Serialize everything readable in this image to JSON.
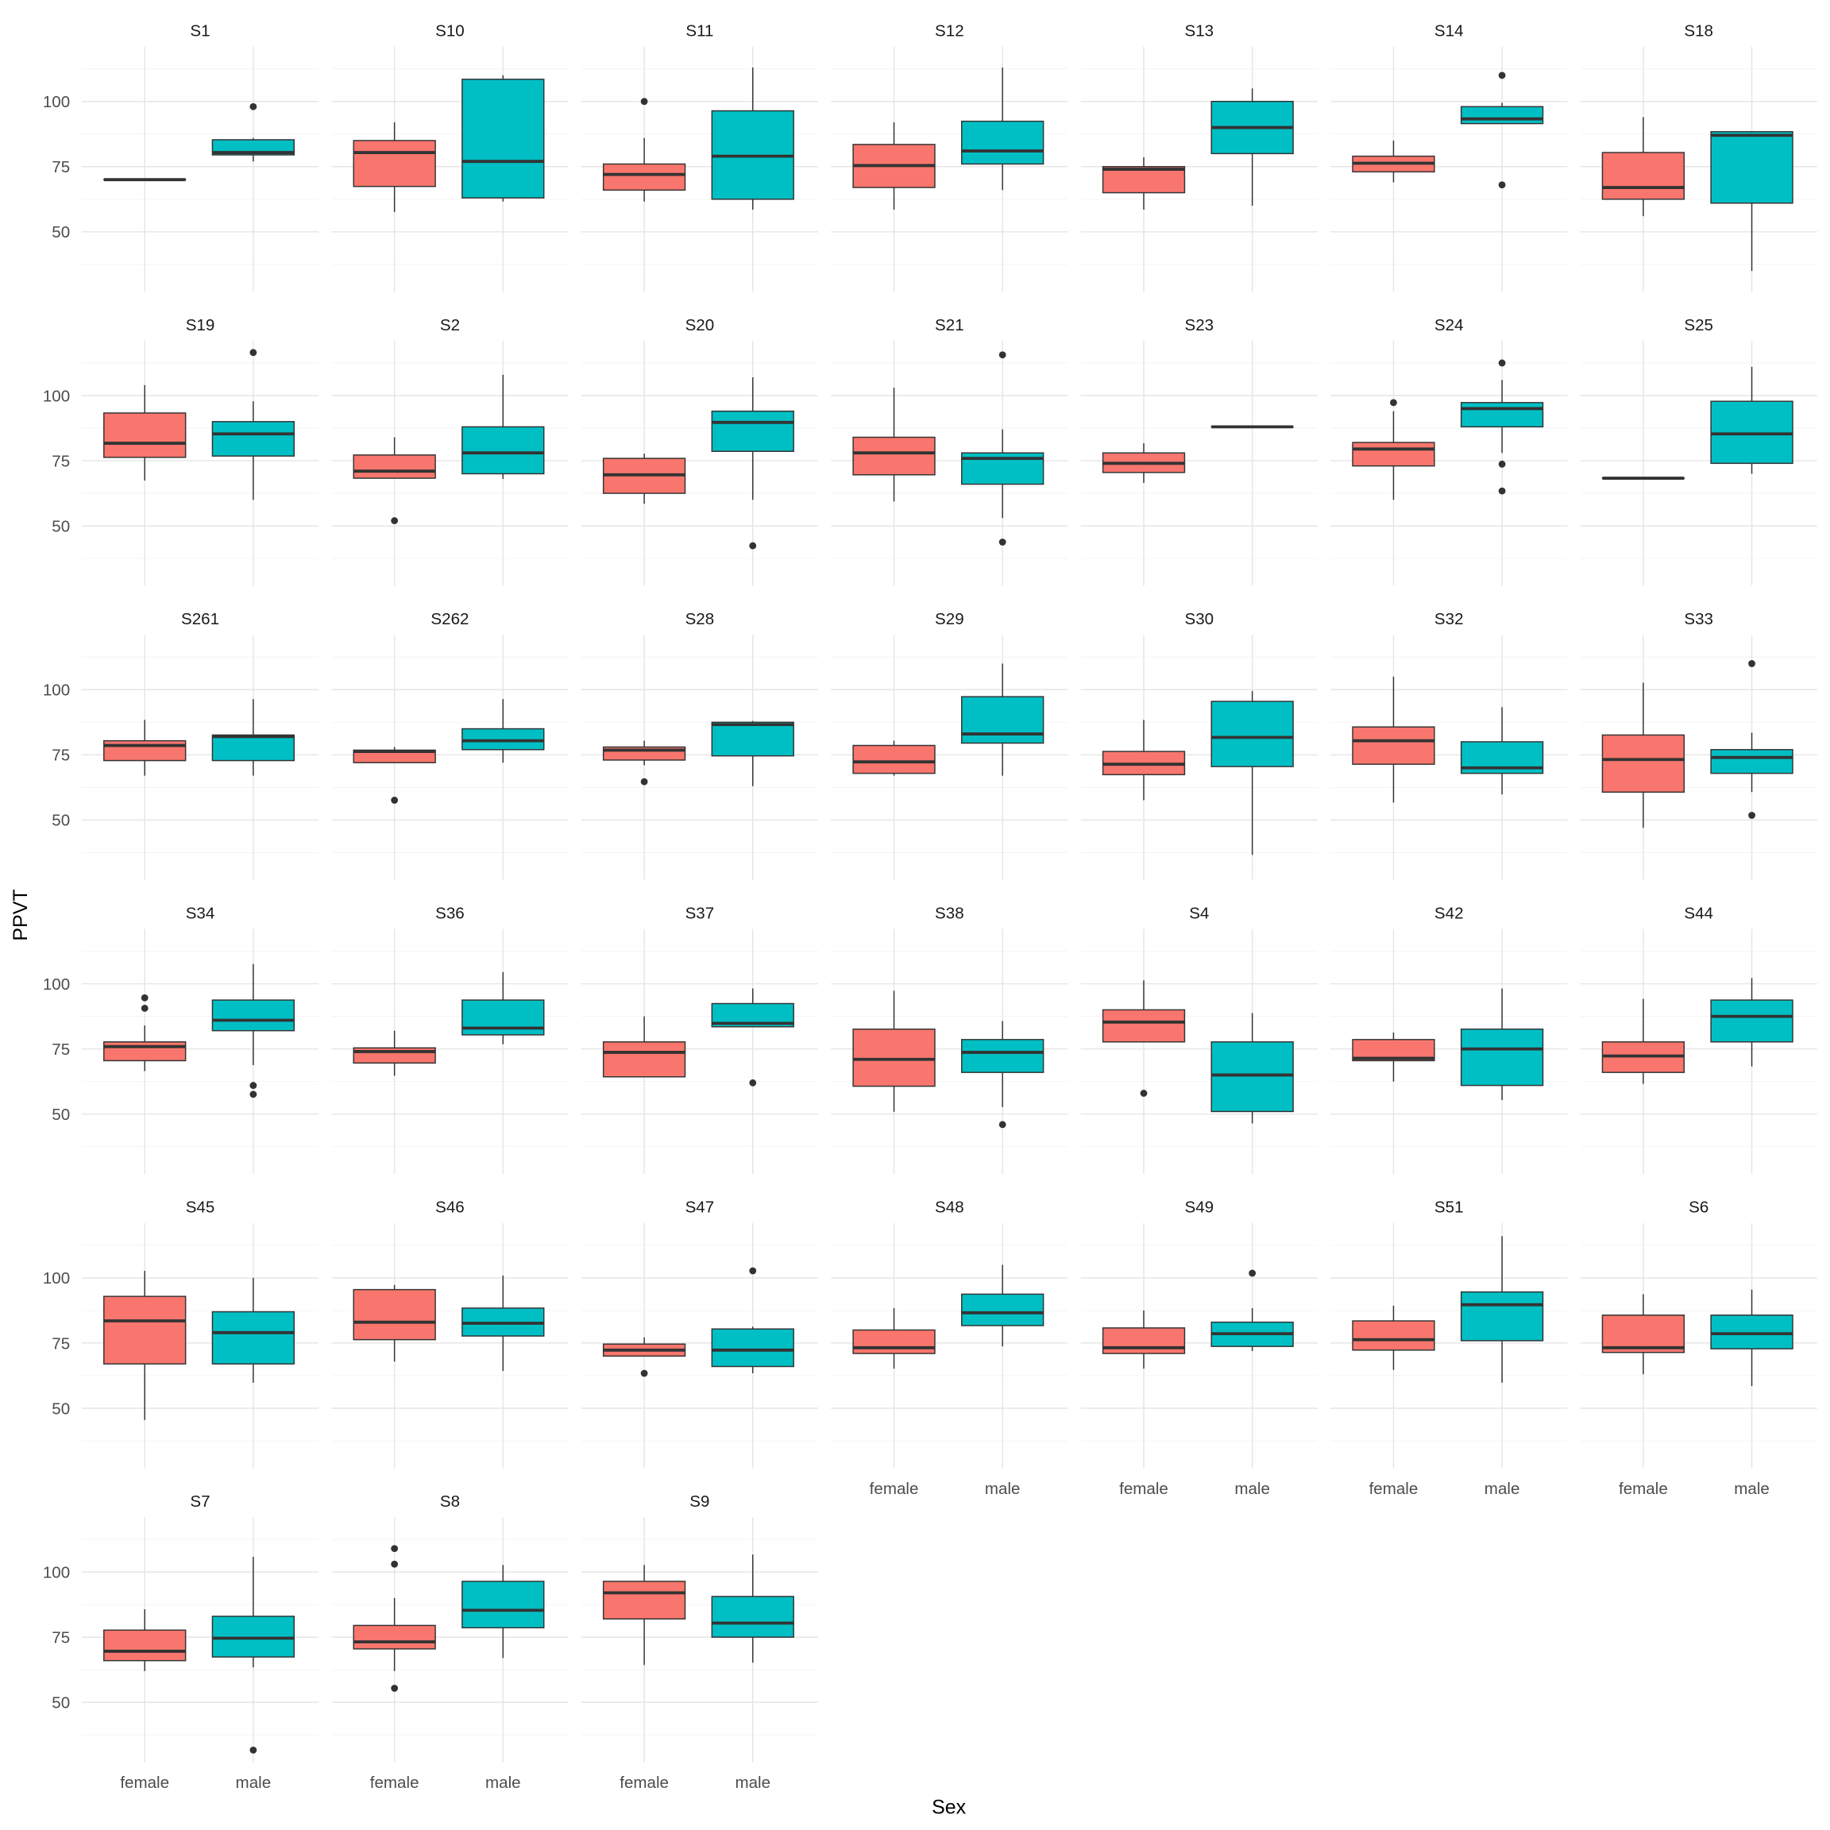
{
  "chart_data": {
    "type": "boxplot",
    "title": "",
    "xlabel": "Sex",
    "ylabel": "PPVT",
    "categories": [
      "female",
      "male"
    ],
    "ylim": [
      27,
      121
    ],
    "yticks": [
      50,
      75,
      100
    ],
    "ytick_labels": [
      "50",
      "75",
      "100"
    ],
    "grid": true,
    "colors": {
      "female": "#F8766D",
      "male": "#00BFC4"
    },
    "stat_order": [
      "lower_whisker",
      "q1",
      "median",
      "q3",
      "upper_whisker"
    ],
    "panels": [
      {
        "name": "S1",
        "female": {
          "stats": [
            70,
            70,
            70,
            70,
            70
          ],
          "outliers": []
        },
        "male": {
          "stats": [
            77,
            79.5,
            80.4,
            85.3,
            86
          ],
          "outliers": [
            98
          ]
        }
      },
      {
        "name": "S10",
        "female": {
          "stats": [
            57.6,
            67.4,
            80.4,
            85,
            92
          ],
          "outliers": []
        },
        "male": {
          "stats": [
            61.6,
            63,
            77,
            108.5,
            110
          ],
          "outliers": []
        }
      },
      {
        "name": "S11",
        "female": {
          "stats": [
            61.6,
            66,
            72,
            76,
            86
          ],
          "outliers": [
            100
          ]
        },
        "male": {
          "stats": [
            58.5,
            62.5,
            79,
            96.4,
            113
          ],
          "outliers": []
        }
      },
      {
        "name": "S12",
        "female": {
          "stats": [
            58.5,
            67,
            75.4,
            83.5,
            92
          ],
          "outliers": []
        },
        "male": {
          "stats": [
            66,
            76,
            81,
            92.4,
            113
          ],
          "outliers": []
        }
      },
      {
        "name": "S13",
        "female": {
          "stats": [
            58.5,
            65,
            74,
            75,
            78.6
          ],
          "outliers": []
        },
        "male": {
          "stats": [
            60,
            80,
            90,
            100,
            105
          ],
          "outliers": []
        }
      },
      {
        "name": "S14",
        "female": {
          "stats": [
            69,
            73,
            76.3,
            79,
            85
          ],
          "outliers": []
        },
        "male": {
          "stats": [
            91.5,
            91.5,
            93.3,
            98,
            99.5
          ],
          "outliers": [
            110,
            68
          ]
        }
      },
      {
        "name": "S18",
        "female": {
          "stats": [
            56,
            62.5,
            67,
            80.4,
            94
          ],
          "outliers": []
        },
        "male": {
          "stats": [
            35,
            61,
            87,
            88.4,
            88.4
          ],
          "outliers": []
        }
      },
      {
        "name": "S19",
        "female": {
          "stats": [
            67.4,
            76.3,
            81.7,
            93.3,
            104
          ],
          "outliers": []
        },
        "male": {
          "stats": [
            60,
            76.8,
            85.3,
            90,
            97.8
          ],
          "outliers": [
            116.5
          ]
        }
      },
      {
        "name": "S2",
        "female": {
          "stats": [
            68.3,
            68.3,
            71,
            77.2,
            84
          ],
          "outliers": [
            52
          ]
        },
        "male": {
          "stats": [
            68,
            70,
            78,
            88,
            108
          ],
          "outliers": []
        }
      },
      {
        "name": "S20",
        "female": {
          "stats": [
            58.5,
            62.5,
            69.6,
            75.9,
            77.7
          ],
          "outliers": []
        },
        "male": {
          "stats": [
            60,
            78.6,
            89.7,
            94,
            107
          ],
          "outliers": [
            42.4
          ]
        }
      },
      {
        "name": "S21",
        "female": {
          "stats": [
            59.4,
            69.6,
            78,
            84,
            103
          ],
          "outliers": []
        },
        "male": {
          "stats": [
            53,
            66,
            75.9,
            78,
            87
          ],
          "outliers": [
            115.6,
            43.8
          ]
        }
      },
      {
        "name": "S23",
        "female": {
          "stats": [
            66.5,
            70.5,
            74,
            78,
            81.7
          ],
          "outliers": []
        },
        "male": {
          "stats": [
            88,
            88,
            88,
            88,
            88
          ],
          "outliers": []
        }
      },
      {
        "name": "S24",
        "female": {
          "stats": [
            60,
            73,
            79.5,
            82,
            94
          ],
          "outliers": [
            97.3
          ]
        },
        "male": {
          "stats": [
            78,
            88,
            95,
            97.3,
            106
          ],
          "outliers": [
            112.5,
            73.7,
            63.4
          ]
        }
      },
      {
        "name": "S25",
        "female": {
          "stats": [
            68.3,
            68.3,
            68.3,
            68.3,
            68.3
          ],
          "outliers": []
        },
        "male": {
          "stats": [
            70,
            74,
            85.3,
            97.8,
            111
          ],
          "outliers": []
        }
      },
      {
        "name": "S261",
        "female": {
          "stats": [
            67,
            72.8,
            78.6,
            80.4,
            88.4
          ],
          "outliers": []
        },
        "male": {
          "stats": [
            67,
            72.8,
            82,
            82.6,
            96.4
          ],
          "outliers": []
        }
      },
      {
        "name": "S262",
        "female": {
          "stats": [
            72,
            72,
            76.3,
            76.8,
            78
          ],
          "outliers": [
            57.6
          ]
        },
        "male": {
          "stats": [
            72,
            77,
            80.4,
            85,
            96.4
          ],
          "outliers": []
        }
      },
      {
        "name": "S28",
        "female": {
          "stats": [
            71,
            73,
            76.8,
            78,
            80.4
          ],
          "outliers": [
            64.7
          ]
        },
        "male": {
          "stats": [
            63,
            74.6,
            86.6,
            87.5,
            88
          ],
          "outliers": []
        }
      },
      {
        "name": "S29",
        "female": {
          "stats": [
            67,
            67.9,
            72.3,
            78.6,
            80.4
          ],
          "outliers": []
        },
        "male": {
          "stats": [
            67,
            79.5,
            83,
            97.3,
            110
          ],
          "outliers": []
        }
      },
      {
        "name": "S30",
        "female": {
          "stats": [
            57.6,
            67.4,
            71.4,
            76.3,
            88.4
          ],
          "outliers": []
        },
        "male": {
          "stats": [
            36.6,
            70.5,
            81.7,
            95.5,
            99.5
          ],
          "outliers": []
        }
      },
      {
        "name": "S32",
        "female": {
          "stats": [
            56.7,
            71.4,
            80.4,
            85.7,
            105
          ],
          "outliers": []
        },
        "male": {
          "stats": [
            59.8,
            67.9,
            70,
            80,
            93.3
          ],
          "outliers": []
        }
      },
      {
        "name": "S33",
        "female": {
          "stats": [
            47,
            60.7,
            73.2,
            82.6,
            102.7
          ],
          "outliers": []
        },
        "male": {
          "stats": [
            60.7,
            67.9,
            74,
            77,
            83.5
          ],
          "outliers": [
            110,
            51.8
          ]
        }
      },
      {
        "name": "S34",
        "female": {
          "stats": [
            66.5,
            70.5,
            75.9,
            77.7,
            84
          ],
          "outliers": [
            94.6,
            90.6
          ]
        },
        "male": {
          "stats": [
            68.8,
            82,
            86,
            93.75,
            107.6
          ],
          "outliers": [
            61,
            57.6
          ]
        }
      },
      {
        "name": "S36",
        "female": {
          "stats": [
            64.7,
            69.6,
            74,
            75.4,
            82
          ],
          "outliers": []
        },
        "male": {
          "stats": [
            76.8,
            80.4,
            83,
            93.75,
            104.5
          ],
          "outliers": []
        }
      },
      {
        "name": "S37",
        "female": {
          "stats": [
            64.3,
            64.3,
            73.7,
            77.7,
            87.5
          ],
          "outliers": []
        },
        "male": {
          "stats": [
            83.5,
            83.5,
            84.8,
            92.4,
            98.2
          ],
          "outliers": [
            62
          ]
        }
      },
      {
        "name": "S38",
        "female": {
          "stats": [
            50.9,
            60.7,
            71,
            82.6,
            97.3
          ],
          "outliers": []
        },
        "male": {
          "stats": [
            52.7,
            66,
            73.7,
            78.6,
            85.7
          ],
          "outliers": [
            46
          ]
        }
      },
      {
        "name": "S4",
        "female": {
          "stats": [
            77.7,
            77.7,
            85.3,
            90,
            101.3
          ],
          "outliers": [
            58
          ]
        },
        "male": {
          "stats": [
            46.4,
            51,
            65,
            77.7,
            88.8
          ],
          "outliers": []
        }
      },
      {
        "name": "S42",
        "female": {
          "stats": [
            62.5,
            70.5,
            71.4,
            78.6,
            81.3
          ],
          "outliers": []
        },
        "male": {
          "stats": [
            55.4,
            61,
            75,
            82.6,
            98.2
          ],
          "outliers": []
        }
      },
      {
        "name": "S44",
        "female": {
          "stats": [
            61.6,
            66,
            72.3,
            77.7,
            94.2
          ],
          "outliers": []
        },
        "male": {
          "stats": [
            68.3,
            77.7,
            87.5,
            93.75,
            102.2
          ],
          "outliers": []
        }
      },
      {
        "name": "S45",
        "female": {
          "stats": [
            45.5,
            67,
            83.5,
            92.9,
            102.7
          ],
          "outliers": []
        },
        "male": {
          "stats": [
            59.8,
            67,
            79,
            87,
            100
          ],
          "outliers": []
        }
      },
      {
        "name": "S46",
        "female": {
          "stats": [
            67.9,
            76.3,
            83,
            95.5,
            97.3
          ],
          "outliers": []
        },
        "male": {
          "stats": [
            64.3,
            77.7,
            82.6,
            88.4,
            100.9
          ],
          "outliers": []
        }
      },
      {
        "name": "S47",
        "female": {
          "stats": [
            70,
            70,
            72.3,
            74.6,
            77.2
          ],
          "outliers": [
            63.4
          ]
        },
        "male": {
          "stats": [
            63.4,
            66,
            72.3,
            80.4,
            81.3
          ],
          "outliers": [
            102.7
          ]
        }
      },
      {
        "name": "S48",
        "female": {
          "stats": [
            65.2,
            71,
            73.2,
            80,
            88.4
          ],
          "outliers": []
        },
        "male": {
          "stats": [
            73.7,
            81.7,
            86.6,
            93.75,
            105
          ],
          "outliers": []
        }
      },
      {
        "name": "S49",
        "female": {
          "stats": [
            65.2,
            71,
            73.2,
            80.8,
            87.5
          ],
          "outliers": []
        },
        "male": {
          "stats": [
            71.9,
            73.7,
            78.6,
            83,
            88.4
          ],
          "outliers": [
            101.8
          ]
        }
      },
      {
        "name": "S51",
        "female": {
          "stats": [
            64.7,
            72.3,
            76.3,
            83.5,
            89.3
          ],
          "outliers": []
        },
        "male": {
          "stats": [
            59.8,
            75.9,
            89.7,
            94.6,
            116
          ],
          "outliers": []
        }
      },
      {
        "name": "S6",
        "female": {
          "stats": [
            63,
            71.4,
            73.2,
            85.7,
            93.75
          ],
          "outliers": []
        },
        "male": {
          "stats": [
            58.5,
            72.8,
            78.6,
            85.7,
            95.5
          ],
          "outliers": []
        }
      },
      {
        "name": "S7",
        "female": {
          "stats": [
            62,
            66,
            69.6,
            77.7,
            85.7
          ],
          "outliers": []
        },
        "male": {
          "stats": [
            63.4,
            67.4,
            74.6,
            83,
            105.8
          ],
          "outliers": [
            31.7
          ]
        }
      },
      {
        "name": "S8",
        "female": {
          "stats": [
            62,
            70.5,
            73.2,
            79.5,
            90
          ],
          "outliers": [
            109,
            103,
            55.4
          ]
        },
        "male": {
          "stats": [
            67,
            78.6,
            85.3,
            96.4,
            102.7
          ],
          "outliers": []
        }
      },
      {
        "name": "S9",
        "female": {
          "stats": [
            64.3,
            82,
            92,
            96.4,
            102.7
          ],
          "outliers": []
        },
        "male": {
          "stats": [
            65.2,
            75,
            80.4,
            90.6,
            106.7
          ],
          "outliers": []
        }
      }
    ]
  }
}
